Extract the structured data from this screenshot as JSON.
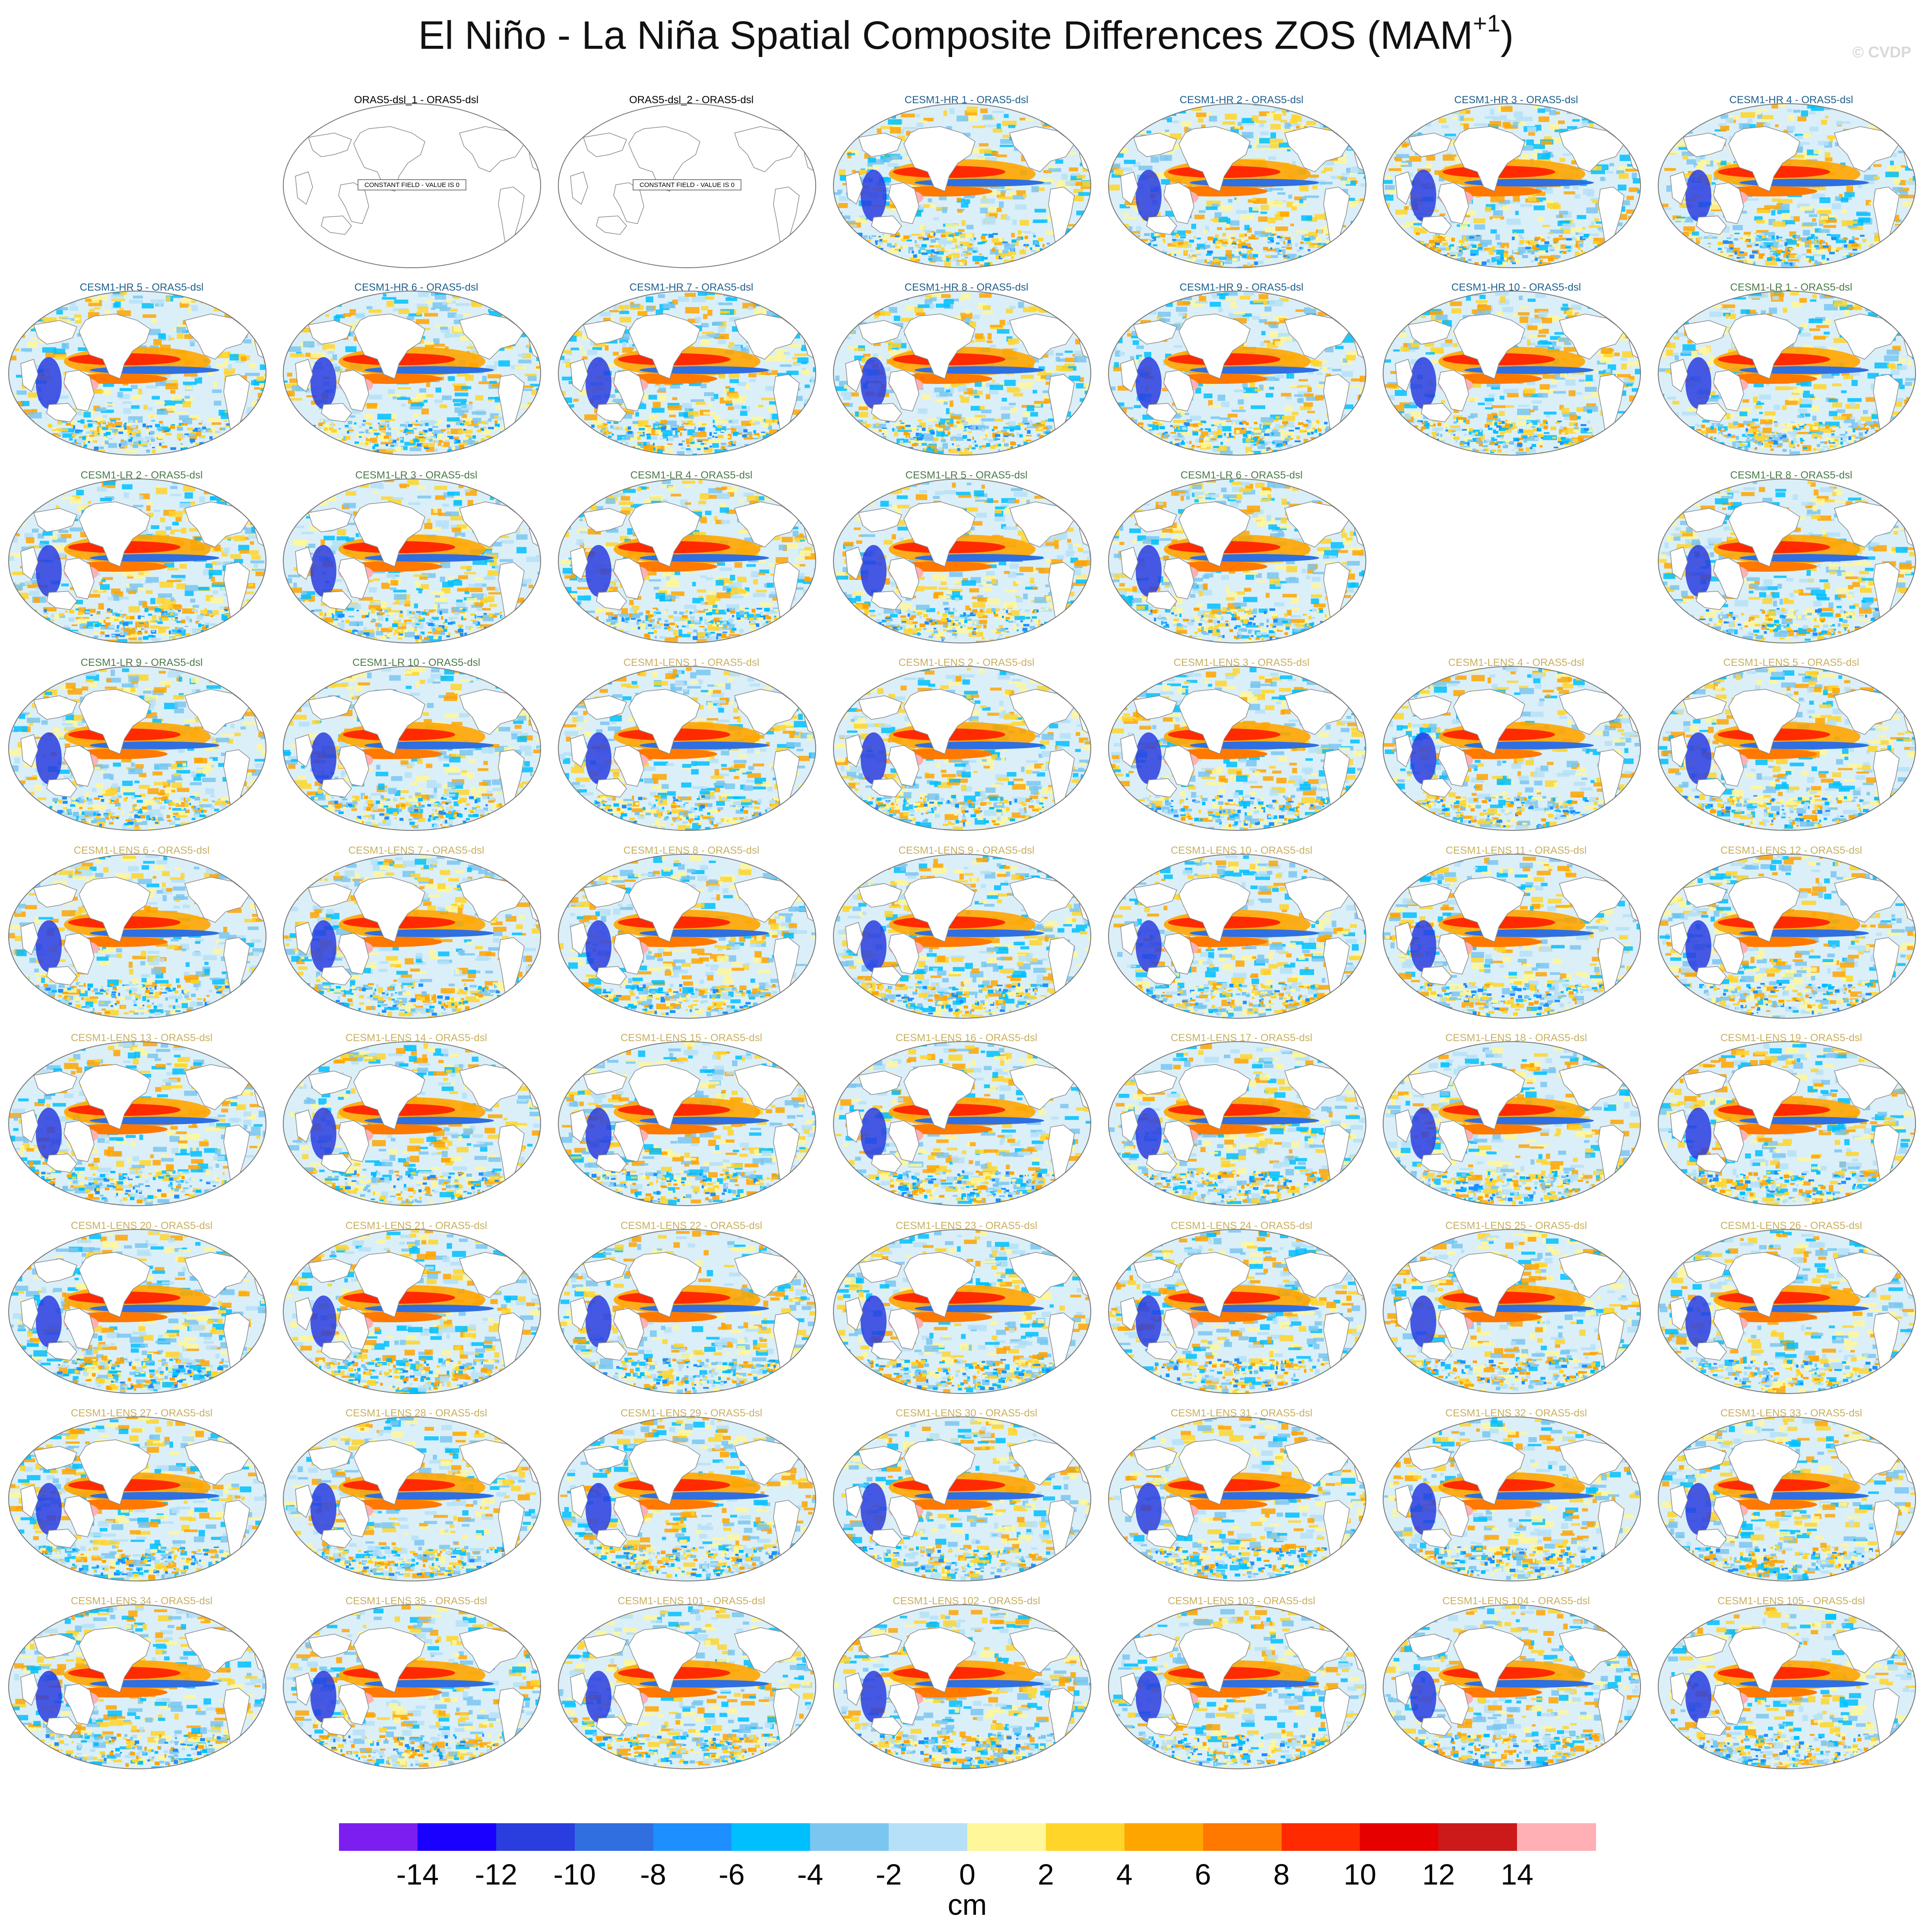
{
  "title": {
    "main": "El Niño - La Niña Spatial Composite Differences ZOS (MAM",
    "sup": "+1",
    "end": ")"
  },
  "watermark": "© CVDP",
  "panels": [
    {
      "row": 0,
      "col": 1,
      "label": "ORAS5-dsl_1 - ORAS5-dsl",
      "group": "obs",
      "constant": "CONSTANT FIELD - VALUE IS 0"
    },
    {
      "row": 0,
      "col": 2,
      "label": "ORAS5-dsl_2 - ORAS5-dsl",
      "group": "obs",
      "constant": "CONSTANT FIELD - VALUE IS 0"
    },
    {
      "row": 0,
      "col": 3,
      "label": "CESM1-HR 1 - ORAS5-dsl",
      "group": "hr"
    },
    {
      "row": 0,
      "col": 4,
      "label": "CESM1-HR 2 - ORAS5-dsl",
      "group": "hr"
    },
    {
      "row": 0,
      "col": 5,
      "label": "CESM1-HR 3 - ORAS5-dsl",
      "group": "hr"
    },
    {
      "row": 0,
      "col": 6,
      "label": "CESM1-HR 4 - ORAS5-dsl",
      "group": "hr"
    },
    {
      "row": 1,
      "col": 0,
      "label": "CESM1-HR 5 - ORAS5-dsl",
      "group": "hr"
    },
    {
      "row": 1,
      "col": 1,
      "label": "CESM1-HR 6 - ORAS5-dsl",
      "group": "hr"
    },
    {
      "row": 1,
      "col": 2,
      "label": "CESM1-HR 7 - ORAS5-dsl",
      "group": "hr"
    },
    {
      "row": 1,
      "col": 3,
      "label": "CESM1-HR 8 - ORAS5-dsl",
      "group": "hr"
    },
    {
      "row": 1,
      "col": 4,
      "label": "CESM1-HR 9 - ORAS5-dsl",
      "group": "hr"
    },
    {
      "row": 1,
      "col": 5,
      "label": "CESM1-HR 10 - ORAS5-dsl",
      "group": "hr"
    },
    {
      "row": 1,
      "col": 6,
      "label": "CESM1-LR 1 - ORAS5-dsl",
      "group": "lr"
    },
    {
      "row": 2,
      "col": 0,
      "label": "CESM1-LR 2 - ORAS5-dsl",
      "group": "lr"
    },
    {
      "row": 2,
      "col": 1,
      "label": "CESM1-LR 3 - ORAS5-dsl",
      "group": "lr"
    },
    {
      "row": 2,
      "col": 2,
      "label": "CESM1-LR 4 - ORAS5-dsl",
      "group": "lr"
    },
    {
      "row": 2,
      "col": 3,
      "label": "CESM1-LR 5 - ORAS5-dsl",
      "group": "lr"
    },
    {
      "row": 2,
      "col": 4,
      "label": "CESM1-LR 6 - ORAS5-dsl",
      "group": "lr"
    },
    {
      "row": 2,
      "col": 6,
      "label": "CESM1-LR 8 - ORAS5-dsl",
      "group": "lr"
    },
    {
      "row": 3,
      "col": 0,
      "label": "CESM1-LR 9 - ORAS5-dsl",
      "group": "lr"
    },
    {
      "row": 3,
      "col": 1,
      "label": "CESM1-LR 10 - ORAS5-dsl",
      "group": "lr"
    },
    {
      "row": 3,
      "col": 2,
      "label": "CESM1-LENS 1 - ORAS5-dsl",
      "group": "lens"
    },
    {
      "row": 3,
      "col": 3,
      "label": "CESM1-LENS 2 - ORAS5-dsl",
      "group": "lens"
    },
    {
      "row": 3,
      "col": 4,
      "label": "CESM1-LENS 3 - ORAS5-dsl",
      "group": "lens"
    },
    {
      "row": 3,
      "col": 5,
      "label": "CESM1-LENS 4 - ORAS5-dsl",
      "group": "lens"
    },
    {
      "row": 3,
      "col": 6,
      "label": "CESM1-LENS 5 - ORAS5-dsl",
      "group": "lens"
    },
    {
      "row": 4,
      "col": 0,
      "label": "CESM1-LENS 6 - ORAS5-dsl",
      "group": "lens"
    },
    {
      "row": 4,
      "col": 1,
      "label": "CESM1-LENS 7 - ORAS5-dsl",
      "group": "lens"
    },
    {
      "row": 4,
      "col": 2,
      "label": "CESM1-LENS 8 - ORAS5-dsl",
      "group": "lens"
    },
    {
      "row": 4,
      "col": 3,
      "label": "CESM1-LENS 9 - ORAS5-dsl",
      "group": "lens"
    },
    {
      "row": 4,
      "col": 4,
      "label": "CESM1-LENS 10 - ORAS5-dsl",
      "group": "lens"
    },
    {
      "row": 4,
      "col": 5,
      "label": "CESM1-LENS 11 - ORAS5-dsl",
      "group": "lens"
    },
    {
      "row": 4,
      "col": 6,
      "label": "CESM1-LENS 12 - ORAS5-dsl",
      "group": "lens"
    },
    {
      "row": 5,
      "col": 0,
      "label": "CESM1-LENS 13 - ORAS5-dsl",
      "group": "lens"
    },
    {
      "row": 5,
      "col": 1,
      "label": "CESM1-LENS 14 - ORAS5-dsl",
      "group": "lens"
    },
    {
      "row": 5,
      "col": 2,
      "label": "CESM1-LENS 15 - ORAS5-dsl",
      "group": "lens"
    },
    {
      "row": 5,
      "col": 3,
      "label": "CESM1-LENS 16 - ORAS5-dsl",
      "group": "lens"
    },
    {
      "row": 5,
      "col": 4,
      "label": "CESM1-LENS 17 - ORAS5-dsl",
      "group": "lens"
    },
    {
      "row": 5,
      "col": 5,
      "label": "CESM1-LENS 18 - ORAS5-dsl",
      "group": "lens"
    },
    {
      "row": 5,
      "col": 6,
      "label": "CESM1-LENS 19 - ORAS5-dsl",
      "group": "lens"
    },
    {
      "row": 6,
      "col": 0,
      "label": "CESM1-LENS 20 - ORAS5-dsl",
      "group": "lens"
    },
    {
      "row": 6,
      "col": 1,
      "label": "CESM1-LENS 21 - ORAS5-dsl",
      "group": "lens"
    },
    {
      "row": 6,
      "col": 2,
      "label": "CESM1-LENS 22 - ORAS5-dsl",
      "group": "lens"
    },
    {
      "row": 6,
      "col": 3,
      "label": "CESM1-LENS 23 - ORAS5-dsl",
      "group": "lens"
    },
    {
      "row": 6,
      "col": 4,
      "label": "CESM1-LENS 24 - ORAS5-dsl",
      "group": "lens"
    },
    {
      "row": 6,
      "col": 5,
      "label": "CESM1-LENS 25 - ORAS5-dsl",
      "group": "lens"
    },
    {
      "row": 6,
      "col": 6,
      "label": "CESM1-LENS 26 - ORAS5-dsl",
      "group": "lens"
    },
    {
      "row": 7,
      "col": 0,
      "label": "CESM1-LENS 27 - ORAS5-dsl",
      "group": "lens"
    },
    {
      "row": 7,
      "col": 1,
      "label": "CESM1-LENS 28 - ORAS5-dsl",
      "group": "lens"
    },
    {
      "row": 7,
      "col": 2,
      "label": "CESM1-LENS 29 - ORAS5-dsl",
      "group": "lens"
    },
    {
      "row": 7,
      "col": 3,
      "label": "CESM1-LENS 30 - ORAS5-dsl",
      "group": "lens"
    },
    {
      "row": 7,
      "col": 4,
      "label": "CESM1-LENS 31 - ORAS5-dsl",
      "group": "lens"
    },
    {
      "row": 7,
      "col": 5,
      "label": "CESM1-LENS 32 - ORAS5-dsl",
      "group": "lens"
    },
    {
      "row": 7,
      "col": 6,
      "label": "CESM1-LENS 33 - ORAS5-dsl",
      "group": "lens"
    },
    {
      "row": 8,
      "col": 0,
      "label": "CESM1-LENS 34 - ORAS5-dsl",
      "group": "lens"
    },
    {
      "row": 8,
      "col": 1,
      "label": "CESM1-LENS 35 - ORAS5-dsl",
      "group": "lens"
    },
    {
      "row": 8,
      "col": 2,
      "label": "CESM1-LENS 101 - ORAS5-dsl",
      "group": "lens"
    },
    {
      "row": 8,
      "col": 3,
      "label": "CESM1-LENS 102 - ORAS5-dsl",
      "group": "lens"
    },
    {
      "row": 8,
      "col": 4,
      "label": "CESM1-LENS 103 - ORAS5-dsl",
      "group": "lens"
    },
    {
      "row": 8,
      "col": 5,
      "label": "CESM1-LENS 104 - ORAS5-dsl",
      "group": "lens"
    },
    {
      "row": 8,
      "col": 6,
      "label": "CESM1-LENS 105 - ORAS5-dsl",
      "group": "lens"
    }
  ],
  "group_colors": {
    "obs": "#000000",
    "hr": "#1f5f8b",
    "lr": "#4a7a4a",
    "lens": "#c8b060"
  },
  "colorbar": {
    "colors": [
      "#7d1ef0",
      "#1a00ff",
      "#2a3ddf",
      "#2f6fe0",
      "#1e8fff",
      "#00bfff",
      "#7ac6f0",
      "#b5e0f7",
      "#fff799",
      "#ffd52a",
      "#ffa500",
      "#ff7800",
      "#ff2a00",
      "#e60000",
      "#cc1a1a",
      "#ffb0b4"
    ],
    "labels": [
      "-14",
      "-12",
      "-10",
      "-8",
      "-6",
      "-4",
      "-2",
      "0",
      "2",
      "4",
      "6",
      "8",
      "10",
      "12",
      "14"
    ],
    "unit": "cm"
  }
}
